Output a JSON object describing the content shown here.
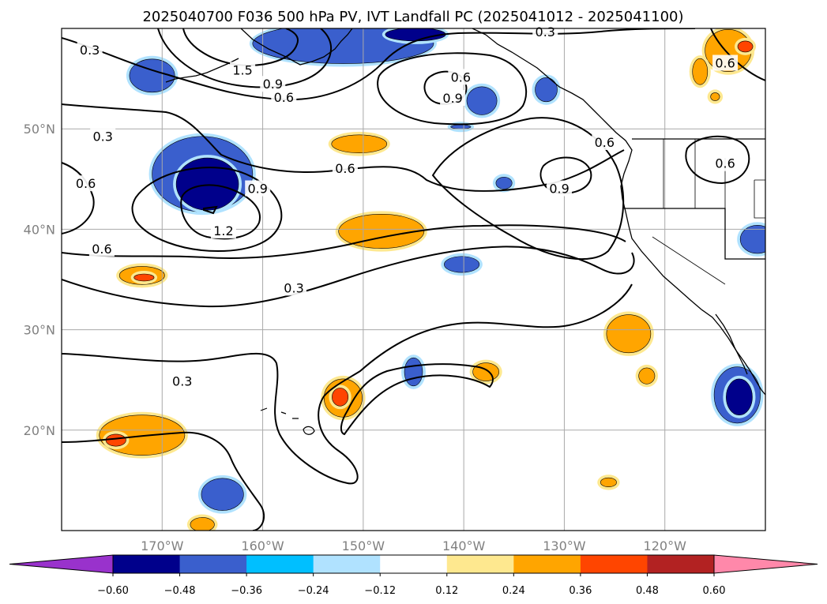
{
  "chart_data": {
    "type": "map",
    "title": "2025040700 F036 500 hPa PV, IVT Landfall PC (2025041012 - 2025041100)",
    "extent": {
      "lon": [
        -180,
        -110
      ],
      "lat": [
        10,
        60
      ]
    },
    "xticks": [
      {
        "value": -170,
        "label": "170°W"
      },
      {
        "value": -160,
        "label": "160°W"
      },
      {
        "value": -150,
        "label": "150°W"
      },
      {
        "value": -140,
        "label": "140°W"
      },
      {
        "value": -130,
        "label": "130°W"
      },
      {
        "value": -120,
        "label": "120°W"
      }
    ],
    "yticks": [
      {
        "value": 20,
        "label": "20°N"
      },
      {
        "value": 30,
        "label": "30°N"
      },
      {
        "value": 40,
        "label": "40°N"
      },
      {
        "value": 50,
        "label": "50°N"
      }
    ],
    "grid": true,
    "colorbar": {
      "orientation": "horizontal",
      "levels": [
        -0.6,
        -0.48,
        -0.36,
        -0.24,
        -0.12,
        0.12,
        0.24,
        0.36,
        0.48,
        0.6
      ],
      "tick_labels": [
        "−0.60",
        "−0.48",
        "−0.36",
        "−0.24",
        "−0.12",
        "0.12",
        "0.24",
        "0.36",
        "0.48",
        "0.60"
      ],
      "colors": [
        "#9932cc",
        "#00008b",
        "#3a5fcd",
        "#00bfff",
        "#b0e2ff",
        "#ffffff",
        "#fee88f",
        "#ffa500",
        "#ff4500",
        "#b22222",
        "#ff88aa"
      ]
    },
    "contour_labels": [
      {
        "text": "0.3",
        "lon": -177.2,
        "lat": 57.8
      },
      {
        "text": "1.5",
        "lon": -162.0,
        "lat": 55.8
      },
      {
        "text": "0.9",
        "lon": -159.0,
        "lat": 54.4
      },
      {
        "text": "0.6",
        "lon": -157.9,
        "lat": 53.1
      },
      {
        "text": "0.3",
        "lon": -175.9,
        "lat": 49.2
      },
      {
        "text": "0.6",
        "lon": -177.6,
        "lat": 44.5
      },
      {
        "text": "0.9",
        "lon": -160.5,
        "lat": 44.0
      },
      {
        "text": "1.2",
        "lon": -163.9,
        "lat": 39.8
      },
      {
        "text": "0.6",
        "lon": -176.0,
        "lat": 38.0
      },
      {
        "text": "0.6",
        "lon": -151.8,
        "lat": 46.0
      },
      {
        "text": "0.3",
        "lon": -131.9,
        "lat": 59.6
      },
      {
        "text": "0.6",
        "lon": -140.3,
        "lat": 55.1
      },
      {
        "text": "0.9",
        "lon": -141.1,
        "lat": 53.0
      },
      {
        "text": "0.9",
        "lon": -130.5,
        "lat": 44.0
      },
      {
        "text": "0.6",
        "lon": -126.0,
        "lat": 48.6
      },
      {
        "text": "0.6",
        "lon": -114.0,
        "lat": 56.5
      },
      {
        "text": "0.6",
        "lon": -114.0,
        "lat": 46.5
      },
      {
        "text": "0.3",
        "lon": -156.9,
        "lat": 34.1
      },
      {
        "text": "0.3",
        "lon": -168.0,
        "lat": 24.8
      }
    ],
    "shaded_regions": [
      {
        "level": 0.24,
        "center": [
          -172.0,
          19.5
        ],
        "size": [
          8.5,
          4.0
        ]
      },
      {
        "level": 0.36,
        "center": [
          -174.6,
          19.0
        ],
        "size": [
          2.0,
          1.2
        ]
      },
      {
        "level": 0.24,
        "center": [
          -172.0,
          35.4
        ],
        "size": [
          4.5,
          1.8
        ]
      },
      {
        "level": 0.36,
        "center": [
          -171.8,
          35.2
        ],
        "size": [
          2.0,
          0.7
        ]
      },
      {
        "level": 0.24,
        "center": [
          -148.2,
          39.8
        ],
        "size": [
          8.5,
          3.4
        ]
      },
      {
        "level": 0.24,
        "center": [
          -150.4,
          48.5
        ],
        "size": [
          5.5,
          1.8
        ]
      },
      {
        "level": 0.24,
        "center": [
          -152.0,
          23.2
        ],
        "size": [
          3.8,
          3.8
        ]
      },
      {
        "level": 0.36,
        "center": [
          -152.3,
          23.3
        ],
        "size": [
          1.6,
          1.8
        ]
      },
      {
        "level": 0.24,
        "center": [
          -137.8,
          25.8
        ],
        "size": [
          2.6,
          1.8
        ]
      },
      {
        "level": 0.24,
        "center": [
          -123.6,
          29.6
        ],
        "size": [
          4.4,
          3.8
        ]
      },
      {
        "level": 0.24,
        "center": [
          -121.8,
          25.4
        ],
        "size": [
          1.6,
          1.6
        ]
      },
      {
        "level": 0.24,
        "center": [
          -125.6,
          14.8
        ],
        "size": [
          1.6,
          0.9
        ]
      },
      {
        "level": 0.24,
        "center": [
          -113.7,
          57.8
        ],
        "size": [
          4.6,
          4.2
        ]
      },
      {
        "level": 0.36,
        "center": [
          -112.0,
          58.2
        ],
        "size": [
          1.5,
          1.1
        ]
      },
      {
        "level": 0.24,
        "center": [
          -116.5,
          55.7
        ],
        "size": [
          1.5,
          2.6
        ]
      },
      {
        "level": 0.24,
        "center": [
          -115.0,
          53.2
        ],
        "size": [
          0.9,
          0.8
        ]
      },
      {
        "level": 0.24,
        "center": [
          -166.0,
          10.6
        ],
        "size": [
          2.4,
          1.4
        ]
      },
      {
        "level": -0.36,
        "center": [
          -171.0,
          55.3
        ],
        "size": [
          4.5,
          3.3
        ]
      },
      {
        "level": -0.36,
        "center": [
          -166.0,
          45.5
        ],
        "size": [
          10.0,
          7.5
        ]
      },
      {
        "level": -0.48,
        "center": [
          -165.5,
          44.5
        ],
        "size": [
          6.2,
          5.2
        ]
      },
      {
        "level": -0.36,
        "center": [
          -152.0,
          58.5
        ],
        "size": [
          18.0,
          4.0
        ]
      },
      {
        "level": -0.48,
        "center": [
          -144.8,
          59.4
        ],
        "size": [
          6.0,
          1.3
        ]
      },
      {
        "level": -0.36,
        "center": [
          -138.2,
          52.8
        ],
        "size": [
          3.0,
          2.8
        ]
      },
      {
        "level": -0.36,
        "center": [
          -131.8,
          53.9
        ],
        "size": [
          2.2,
          2.4
        ]
      },
      {
        "level": -0.36,
        "center": [
          -140.3,
          50.2
        ],
        "size": [
          2.0,
          0.4
        ]
      },
      {
        "level": -0.36,
        "center": [
          -136.0,
          44.6
        ],
        "size": [
          1.6,
          1.2
        ]
      },
      {
        "level": -0.36,
        "center": [
          -140.2,
          36.5
        ],
        "size": [
          3.5,
          1.6
        ]
      },
      {
        "level": -0.36,
        "center": [
          -145.0,
          25.8
        ],
        "size": [
          1.8,
          2.8
        ]
      },
      {
        "level": -0.36,
        "center": [
          -164.0,
          13.6
        ],
        "size": [
          4.2,
          3.2
        ]
      },
      {
        "level": -0.36,
        "center": [
          -112.8,
          23.5
        ],
        "size": [
          4.6,
          5.6
        ]
      },
      {
        "level": -0.48,
        "center": [
          -112.6,
          23.3
        ],
        "size": [
          2.6,
          3.6
        ]
      },
      {
        "level": -0.36,
        "center": [
          -110.8,
          39.0
        ],
        "size": [
          3.4,
          2.8
        ]
      }
    ]
  }
}
